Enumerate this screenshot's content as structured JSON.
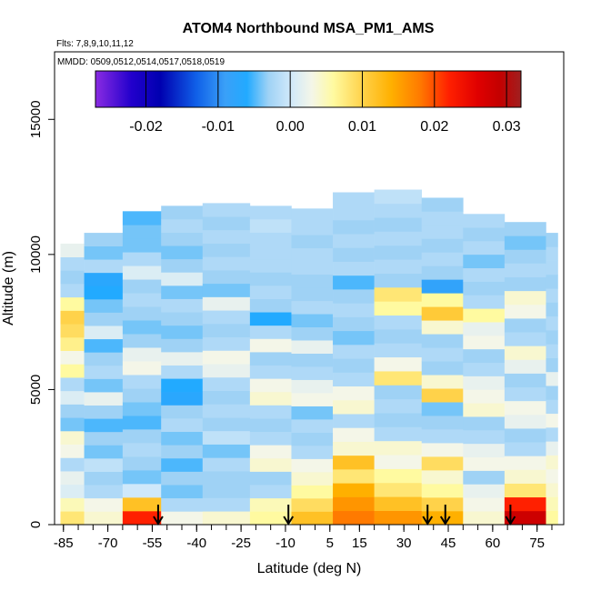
{
  "chart_data": {
    "type": "heatmap",
    "title": "ATOM4 Northbound MSA_PM1_AMS",
    "flights_note": "Flts: 7,8,9,10,11,12",
    "dates_note": "MMDD: 0509,0512,0514,0517,0518,0519",
    "xlabel": "Latitude (deg N)",
    "ylabel": "Altitude (m)",
    "xlim": [
      -88,
      84
    ],
    "ylim": [
      0,
      17500
    ],
    "x_ticks": [
      -85,
      -70,
      -55,
      -40,
      -25,
      -10,
      5,
      15,
      30,
      45,
      60,
      75
    ],
    "y_ticks": [
      0,
      5000,
      10000,
      15000
    ],
    "colorbar": {
      "min": -0.027,
      "max": 0.032,
      "ticks": [
        -0.02,
        -0.01,
        0.0,
        0.01,
        0.02,
        0.03
      ],
      "tick_labels": [
        "-0.02",
        "-0.01",
        "0.00",
        "0.01",
        "0.02",
        "0.03"
      ],
      "stops": [
        {
          "v": -0.027,
          "c": "#8a2be2"
        },
        {
          "v": -0.022,
          "c": "#2200cc"
        },
        {
          "v": -0.018,
          "c": "#0000b0"
        },
        {
          "v": -0.013,
          "c": "#1060e8"
        },
        {
          "v": -0.009,
          "c": "#3aa0f8"
        },
        {
          "v": -0.006,
          "c": "#22aaff"
        },
        {
          "v": -0.003,
          "c": "#9fd2f5"
        },
        {
          "v": 0.0,
          "c": "#cfe8fa"
        },
        {
          "v": 0.003,
          "c": "#f4f6e8"
        },
        {
          "v": 0.006,
          "c": "#fffaa0"
        },
        {
          "v": 0.01,
          "c": "#ffd24a"
        },
        {
          "v": 0.014,
          "c": "#ffb000"
        },
        {
          "v": 0.018,
          "c": "#ff7a00"
        },
        {
          "v": 0.022,
          "c": "#ff2000"
        },
        {
          "v": 0.026,
          "c": "#e00000"
        },
        {
          "v": 0.029,
          "c": "#c40000"
        },
        {
          "v": 0.032,
          "c": "#a02020"
        }
      ]
    },
    "profile_markers_lat": [
      -53,
      -9,
      38,
      44,
      66
    ],
    "profiles": [
      {
        "lat_range": [
          -86,
          -78
        ],
        "top_alt": 10400,
        "values": [
          0.008,
          0.005,
          0.001,
          0.002,
          -0.002,
          0.003,
          0.004,
          -0.004,
          -0.003,
          0.001,
          -0.002,
          0.006,
          0.003,
          0.007,
          0.009,
          0.01,
          0.006,
          -0.002,
          -0.003,
          -0.002,
          0.002
        ]
      },
      {
        "lat_range": [
          -78,
          -65
        ],
        "top_alt": 10800,
        "values": [
          0.004,
          0.003,
          -0.002,
          -0.003,
          -0.001,
          -0.004,
          -0.003,
          -0.005,
          -0.003,
          0.002,
          -0.004,
          -0.002,
          -0.003,
          -0.005,
          0.001,
          -0.003,
          -0.004,
          -0.006,
          -0.007,
          -0.002,
          -0.004,
          -0.003
        ]
      },
      {
        "lat_range": [
          -65,
          -52
        ],
        "top_alt": 11600,
        "values": [
          0.022,
          0.012,
          0.0,
          -0.004,
          -0.003,
          -0.002,
          -0.003,
          -0.005,
          -0.004,
          -0.003,
          -0.002,
          0.003,
          0.002,
          -0.003,
          -0.004,
          -0.003,
          -0.002,
          -0.003,
          0.001,
          -0.002,
          -0.004,
          -0.004,
          -0.005
        ]
      },
      {
        "lat_range": [
          -52,
          -38
        ],
        "top_alt": 11800,
        "values": [
          0.003,
          -0.002,
          -0.004,
          -0.003,
          -0.005,
          -0.003,
          -0.004,
          -0.002,
          -0.003,
          -0.007,
          -0.006,
          -0.002,
          0.002,
          -0.003,
          -0.004,
          -0.003,
          -0.002,
          -0.004,
          0.001,
          -0.003,
          -0.004,
          -0.003,
          -0.002,
          -0.003
        ]
      },
      {
        "lat_range": [
          -38,
          -22
        ],
        "top_alt": 11900,
        "values": [
          0.004,
          -0.002,
          -0.003,
          -0.003,
          -0.002,
          -0.004,
          -0.001,
          -0.003,
          -0.002,
          -0.003,
          -0.002,
          0.002,
          0.003,
          -0.002,
          -0.003,
          -0.002,
          0.002,
          -0.004,
          -0.003,
          -0.002,
          -0.003,
          -0.002,
          -0.003,
          -0.002
        ]
      },
      {
        "lat_range": [
          -22,
          -8
        ],
        "top_alt": 11800,
        "values": [
          0.006,
          0.005,
          -0.002,
          -0.003,
          0.004,
          0.003,
          -0.002,
          -0.003,
          -0.002,
          0.004,
          0.003,
          -0.002,
          -0.003,
          0.003,
          -0.002,
          -0.006,
          -0.003,
          -0.002,
          -0.003,
          -0.002,
          -0.002,
          -0.002,
          -0.001,
          -0.002
        ]
      },
      {
        "lat_range": [
          -8,
          6
        ],
        "top_alt": 11700,
        "values": [
          0.012,
          0.009,
          0.006,
          0.004,
          0.003,
          -0.002,
          -0.003,
          -0.002,
          -0.004,
          0.003,
          0.002,
          -0.002,
          -0.003,
          0.002,
          -0.003,
          -0.004,
          -0.002,
          -0.003,
          -0.003,
          -0.002,
          -0.002,
          -0.003,
          -0.002,
          -0.002
        ]
      },
      {
        "lat_range": [
          6,
          20
        ],
        "top_alt": 12300,
        "values": [
          0.018,
          0.016,
          0.014,
          0.008,
          0.012,
          0.004,
          0.003,
          -0.002,
          0.004,
          0.003,
          -0.002,
          -0.003,
          -0.002,
          -0.004,
          -0.003,
          -0.002,
          -0.003,
          -0.005,
          -0.002,
          -0.003,
          -0.002,
          -0.003,
          -0.002,
          -0.002
        ]
      },
      {
        "lat_range": [
          20,
          36
        ],
        "top_alt": 12400,
        "values": [
          0.016,
          0.012,
          0.008,
          0.006,
          0.003,
          0.004,
          -0.002,
          -0.003,
          -0.002,
          -0.003,
          0.008,
          0.003,
          -0.002,
          -0.003,
          -0.002,
          0.006,
          0.008,
          -0.003,
          -0.002,
          -0.003,
          -0.002,
          -0.003,
          -0.002,
          -0.001
        ]
      },
      {
        "lat_range": [
          36,
          50
        ],
        "top_alt": 12100,
        "values": [
          0.014,
          0.01,
          0.006,
          0.004,
          0.009,
          0.003,
          -0.002,
          -0.003,
          -0.004,
          0.01,
          0.004,
          -0.003,
          -0.002,
          -0.003,
          0.004,
          0.011,
          0.006,
          -0.008,
          -0.003,
          -0.002,
          -0.003,
          -0.002,
          -0.002,
          -0.003
        ]
      },
      {
        "lat_range": [
          50,
          64
        ],
        "top_alt": 11500,
        "values": [
          0.004,
          0.003,
          0.002,
          -0.003,
          0.003,
          0.002,
          -0.002,
          -0.003,
          0.004,
          0.003,
          0.002,
          -0.002,
          -0.003,
          0.003,
          0.002,
          0.006,
          -0.002,
          -0.003,
          -0.002,
          -0.004,
          -0.002,
          -0.003,
          -0.002
        ]
      },
      {
        "lat_range": [
          64,
          78
        ],
        "top_alt": 11200,
        "values": [
          0.028,
          0.022,
          0.008,
          0.004,
          0.003,
          -0.002,
          -0.003,
          0.002,
          0.003,
          -0.002,
          -0.003,
          0.002,
          0.004,
          -0.002,
          -0.003,
          0.003,
          0.004,
          -0.003,
          -0.002,
          -0.003,
          -0.004,
          -0.003
        ]
      },
      {
        "lat_range": [
          78,
          82
        ],
        "top_alt": 10800,
        "values": [
          0.006,
          0.005,
          0.004,
          0.003,
          0.004,
          0.002,
          -0.002,
          0.003,
          -0.002,
          -0.003,
          0.002,
          -0.003,
          -0.002,
          -0.003,
          -0.002,
          -0.003,
          -0.002,
          -0.003,
          -0.002,
          -0.002,
          -0.003
        ]
      }
    ]
  }
}
